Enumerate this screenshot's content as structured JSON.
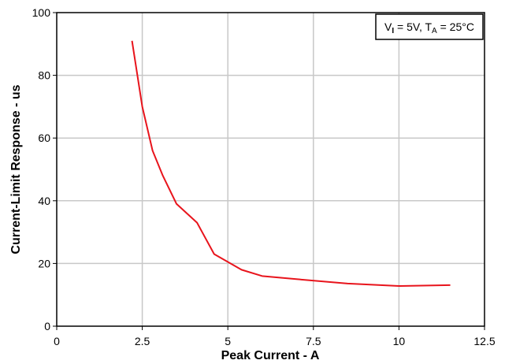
{
  "chart_data": {
    "type": "line",
    "xlabel": "Peak Current - A",
    "ylabel": "Current-Limit Response - us",
    "xlim": [
      0,
      12.5
    ],
    "ylim": [
      0,
      100
    ],
    "xticks": [
      "0",
      "2.5",
      "5",
      "7.5",
      "10",
      "12.5"
    ],
    "yticks": [
      "0",
      "20",
      "40",
      "60",
      "80",
      "100"
    ],
    "grid": true,
    "legend_position": "top-right",
    "annotation": {
      "v_main": "V",
      "v_sub": "I",
      "v_rest": " = 5V, T",
      "t_sub": "A",
      "t_rest": " = 25°C"
    },
    "series": [
      {
        "color": "#e8141c",
        "x": [
          2.2,
          2.5,
          2.8,
          3.1,
          3.5,
          4.1,
          4.6,
          5.4,
          6.0,
          7.0,
          8.5,
          10.0,
          11.5
        ],
        "y": [
          91,
          70,
          56,
          48,
          39,
          33,
          23,
          18,
          16,
          15,
          13.6,
          12.8,
          13.1
        ]
      }
    ]
  }
}
